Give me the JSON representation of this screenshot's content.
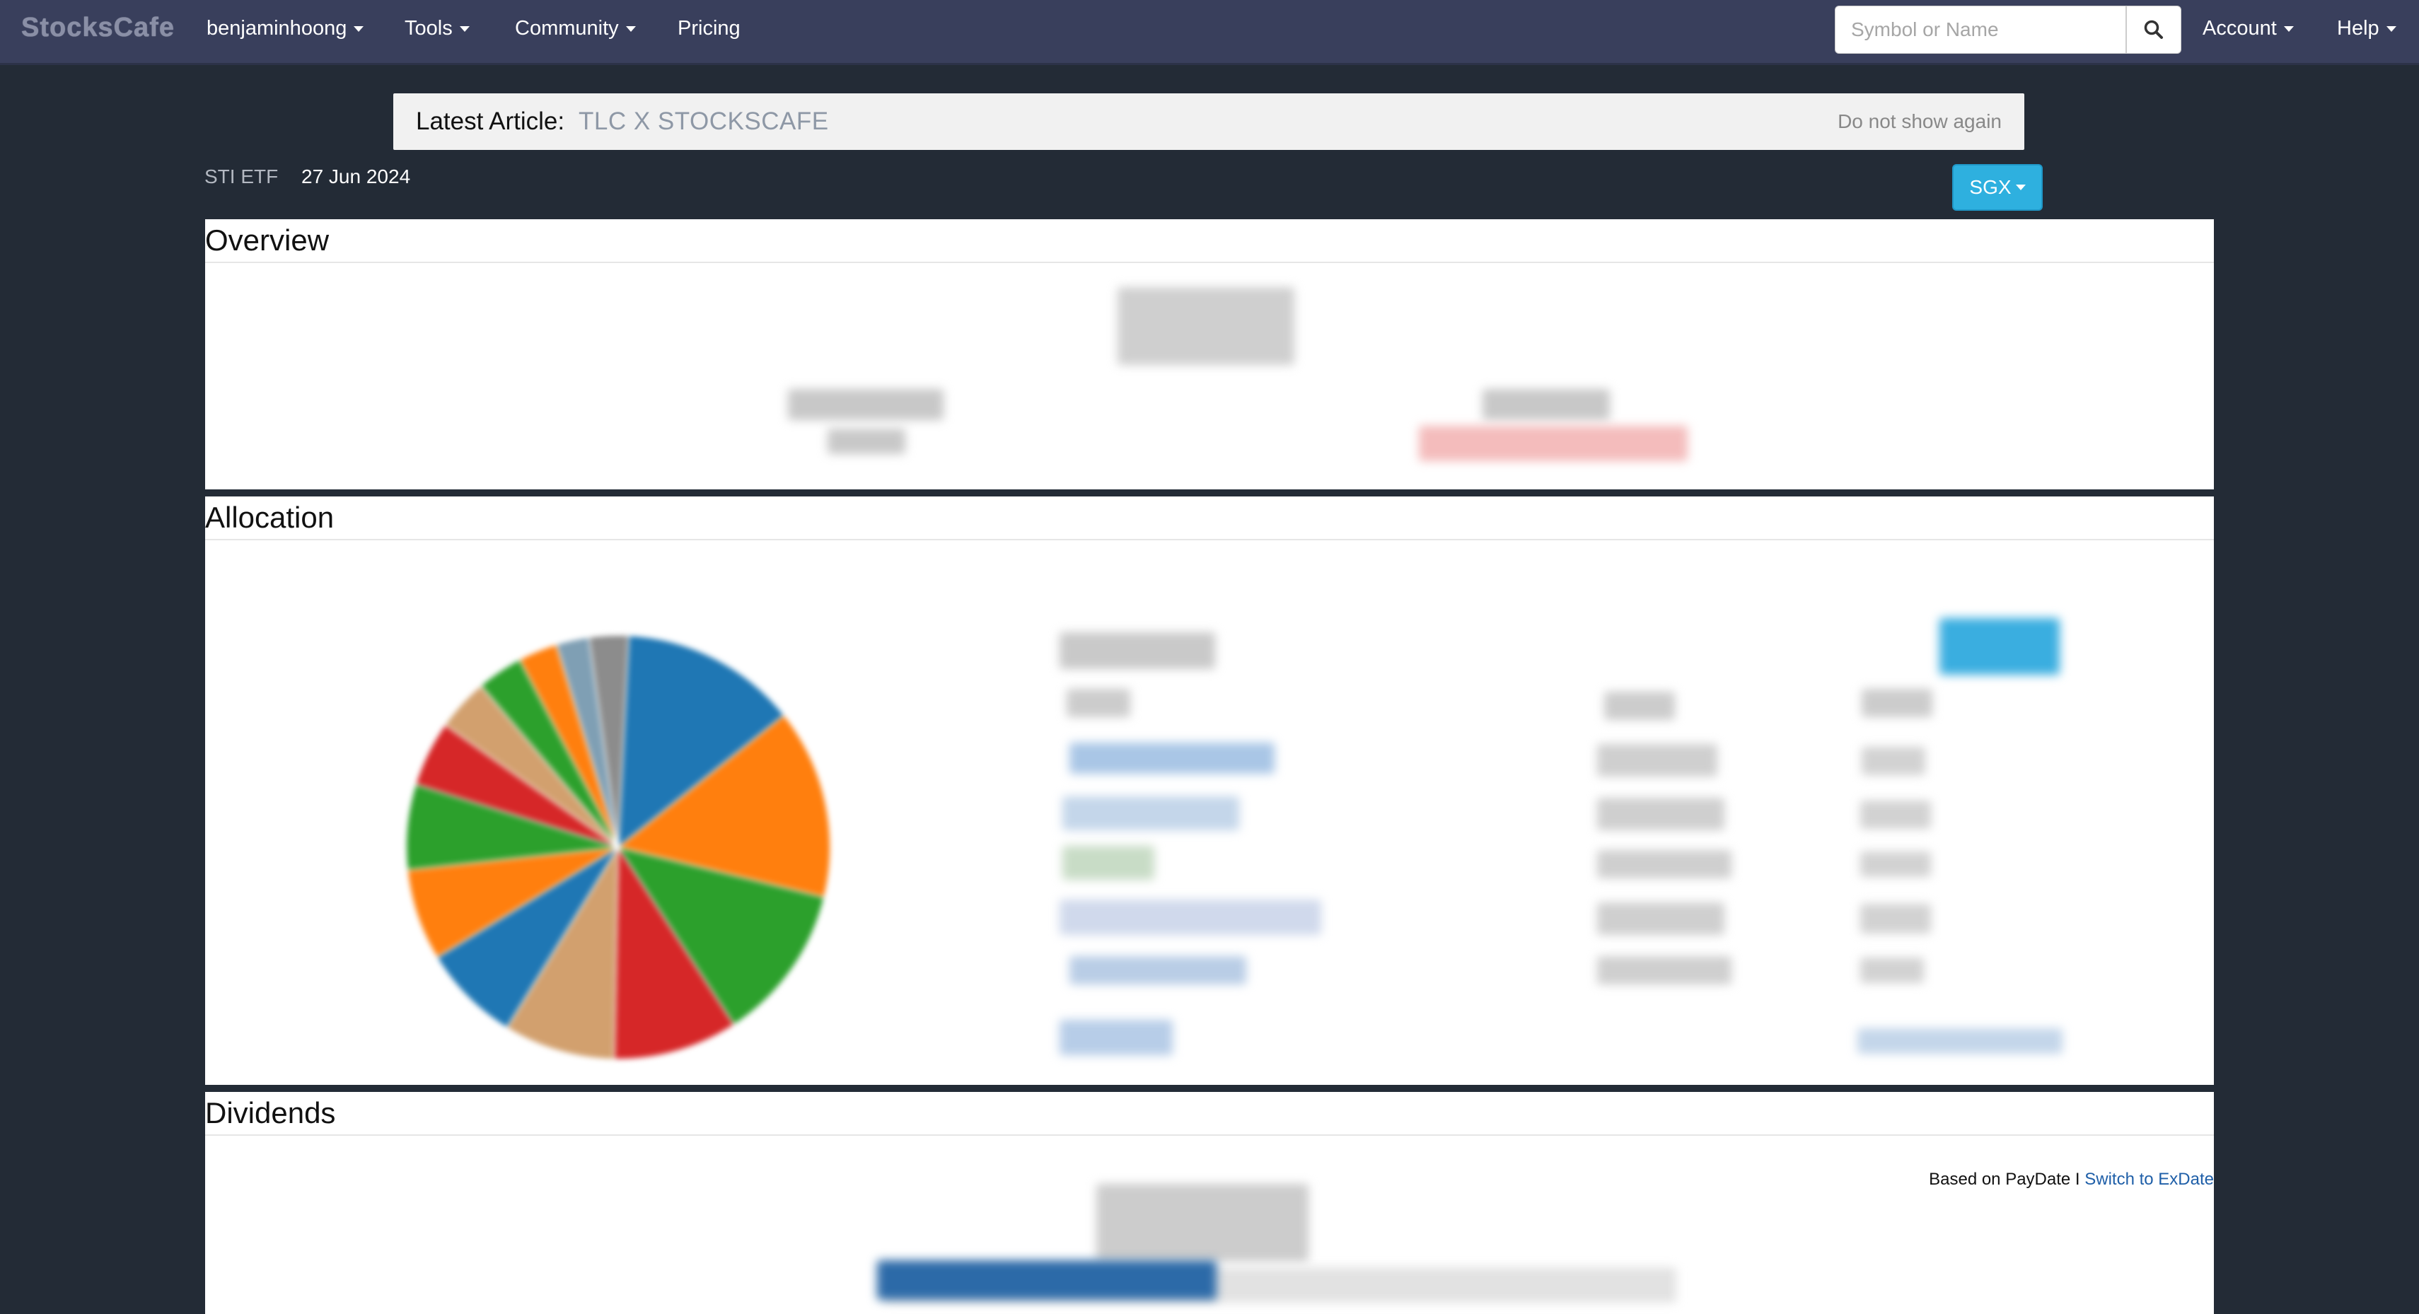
{
  "navbar": {
    "brand": "StocksCafe",
    "user": "benjaminhoong",
    "tools": "Tools",
    "community": "Community",
    "pricing": "Pricing",
    "search_placeholder": "Symbol or Name",
    "account": "Account",
    "help": "Help"
  },
  "banner": {
    "label": "Latest Article:",
    "title": "TLC X STOCKSCAFE",
    "dismiss": "Do not show again"
  },
  "subheader": {
    "symbol": "STI ETF",
    "date": "27 Jun 2024",
    "exchange": "SGX"
  },
  "overview": {
    "title": "Overview"
  },
  "allocation": {
    "title": "Allocation"
  },
  "dividends": {
    "title": "Dividends",
    "basis": "Based on PayDate I",
    "switch_link": "Switch to ExDate"
  },
  "chart_data": {
    "type": "pie",
    "colors": [
      "#1f77b4",
      "#ff7f0e",
      "#2ca02c",
      "#d62728",
      "#d2a06e",
      "#1f77b4",
      "#ff7f0e",
      "#2ca02c",
      "#d62728",
      "#d2a06e",
      "#2ca02c",
      "#ff7f0e",
      "#7f9fb4",
      "#8c8c8c"
    ],
    "values": [
      13.5,
      14.5,
      12,
      9.5,
      8.5,
      7.5,
      7,
      6.5,
      5,
      4,
      3.5,
      3,
      2.5,
      3
    ]
  }
}
